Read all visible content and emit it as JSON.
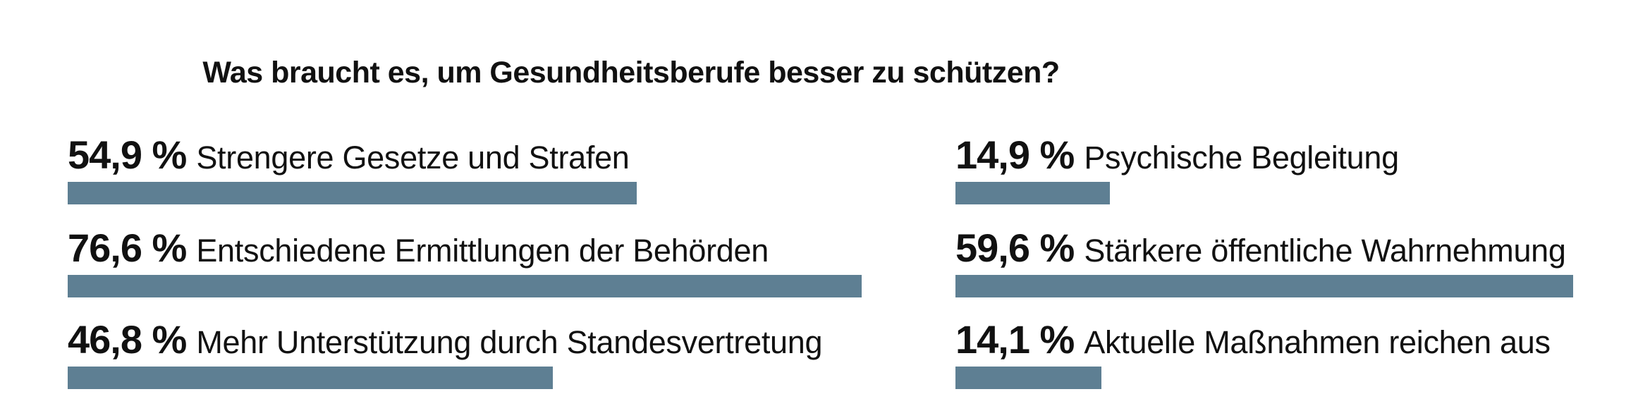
{
  "chart_data": {
    "type": "bar",
    "orientation": "horizontal",
    "title": "Was braucht es, um Gesundheitsberufe besser zu schützen?",
    "value_suffix": " %",
    "bar_color": "#5e7f93",
    "categories": [
      "Strengere Gesetze und Strafen",
      "Entschiedene Ermittlungen der Behörden",
      "Mehr Unterstützung durch Standesvertretung",
      "Psychische Begleitung",
      "Stärkere öffentliche Wahrnehmung",
      "Aktuelle Maßnahmen reichen aus"
    ],
    "values": [
      54.9,
      76.6,
      46.8,
      14.9,
      59.6,
      14.1
    ],
    "value_labels": [
      "54,9 %",
      "76,6 %",
      "46,8 %",
      "14,9 %",
      "59,6 %",
      "14,1 %"
    ],
    "xlim": [
      0,
      100
    ],
    "grid": false
  }
}
